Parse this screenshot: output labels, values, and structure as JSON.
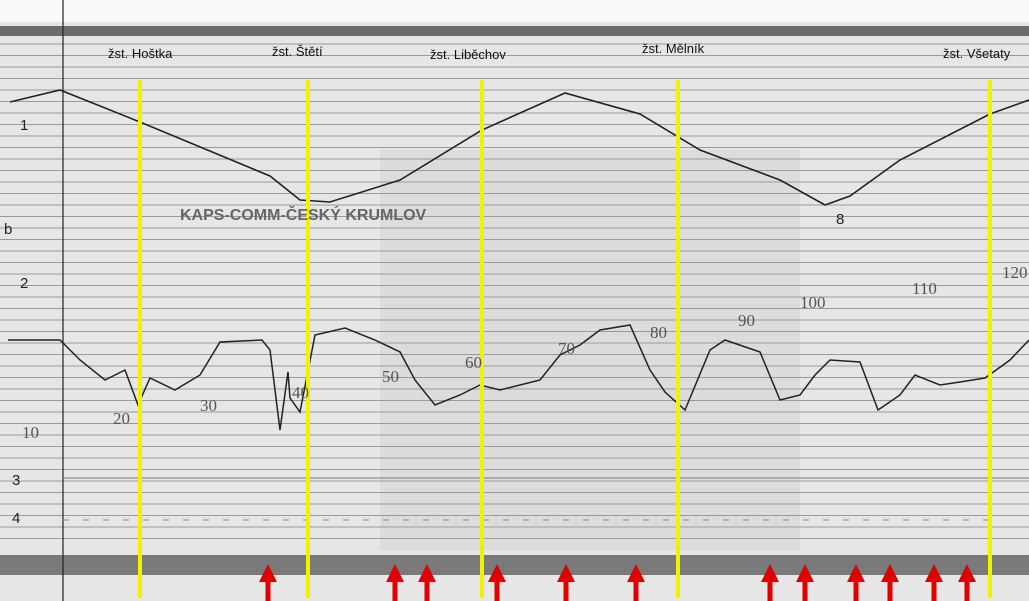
{
  "stations": [
    "žst. Hoštka",
    "žst. Štětí",
    "žst. Liběchov",
    "žst. Mělník",
    "žst. Všetaty"
  ],
  "stamp": "KAPS-COMM-ČESKÝ KRUMLOV",
  "row_labels": [
    "1",
    "2",
    "3",
    "4"
  ],
  "scale_labels": [
    "10",
    "20",
    "30",
    "40",
    "50",
    "60",
    "70",
    "80",
    "90",
    "100",
    "110",
    "120"
  ],
  "marks": [
    "b",
    "8"
  ]
}
